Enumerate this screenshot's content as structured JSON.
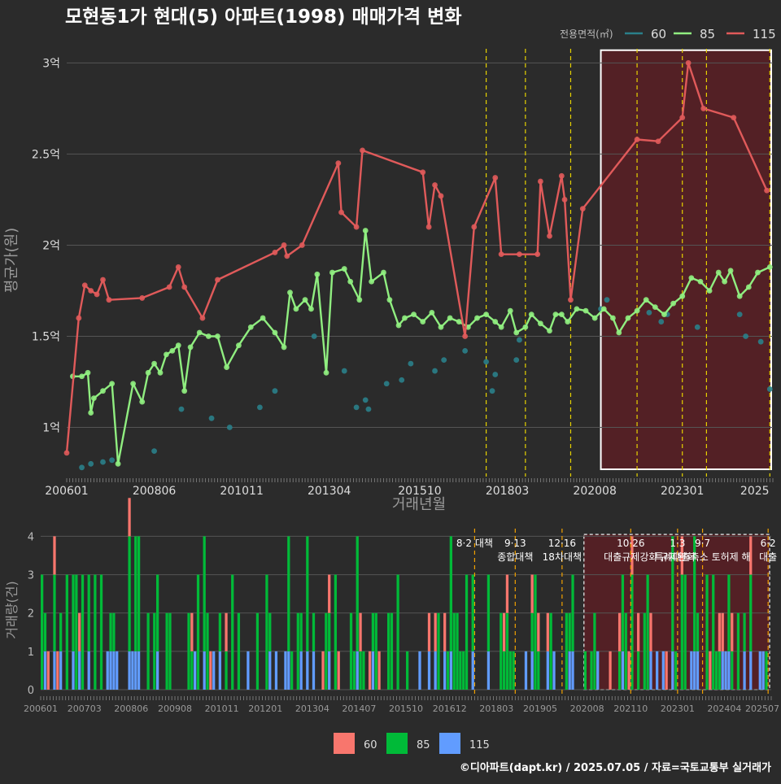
{
  "title": "모현동1가 현대(5) 아파트(1998) 매매가격 변화",
  "credit": "©디아파트(dapt.kr) / 2025.07.05 / 자료=국토교통부 실거래가",
  "colors": {
    "background": "#2b2b2b",
    "grid": "#555555",
    "s60": "#2a7f8a",
    "s85": "#90ee80",
    "s115": "#e05a5a",
    "bar60": "#f8766d",
    "bar85": "#00ba38",
    "bar115": "#619cff",
    "policy_top": "#e6d200",
    "policy_bottom": "#f0a000",
    "highlight_fill": "#5a1f24",
    "highlight_border": "#ffffff"
  },
  "chart_data": [
    {
      "type": "line",
      "name": "price",
      "xlabel": "거래년월",
      "ylabel": "평균가(원)",
      "legend_title": "전용면적(㎡)",
      "legend_placement": "top-right",
      "x_ticks": [
        "200601",
        "200806",
        "201011",
        "201304",
        "201510",
        "201803",
        "202008",
        "202301",
        "2025"
      ],
      "y_ticks": [
        {
          "value": 1.0,
          "label": "1억"
        },
        {
          "value": 1.5,
          "label": "1.5억"
        },
        {
          "value": 2.0,
          "label": "2억"
        },
        {
          "value": 2.5,
          "label": "2.5억"
        },
        {
          "value": 3.0,
          "label": "3억"
        }
      ],
      "ylim": [
        0.73,
        3.1
      ],
      "xlim": [
        "2006-01",
        "2025-07"
      ],
      "grid": true,
      "highlight_period": [
        "2020-10",
        "2025-07"
      ],
      "policy_dates": [
        "2017-08",
        "2018-09",
        "2019-12",
        "2021-10",
        "2023-01",
        "2023-09",
        "2025-06"
      ],
      "series": [
        {
          "name": "60",
          "points": [
            [
              "2006-06",
              0.78
            ],
            [
              "2006-09",
              0.8
            ],
            [
              "2007-01",
              0.81
            ],
            [
              "2007-04",
              0.82
            ],
            [
              "2008-06",
              0.87
            ],
            [
              "2009-03",
              1.1
            ],
            [
              "2010-01",
              1.05
            ],
            [
              "2010-07",
              1.0
            ],
            [
              "2011-05",
              1.11
            ],
            [
              "2011-10",
              1.2
            ],
            [
              "2012-11",
              1.5
            ],
            [
              "2013-09",
              1.31
            ],
            [
              "2014-01",
              1.11
            ],
            [
              "2014-04",
              1.15
            ],
            [
              "2014-05",
              1.1
            ],
            [
              "2014-11",
              1.24
            ],
            [
              "2015-04",
              1.26
            ],
            [
              "2015-07",
              1.35
            ],
            [
              "2016-03",
              1.31
            ],
            [
              "2016-06",
              1.37
            ],
            [
              "2017-01",
              1.42
            ],
            [
              "2017-08",
              1.36
            ],
            [
              "2017-10",
              1.2
            ],
            [
              "2017-11",
              1.29
            ],
            [
              "2018-06",
              1.37
            ],
            [
              "2018-07",
              1.48
            ],
            [
              "2020-10",
              1.65
            ],
            [
              "2020-12",
              1.7
            ],
            [
              "2022-02",
              1.63
            ],
            [
              "2022-06",
              1.58
            ],
            [
              "2022-08",
              1.62
            ],
            [
              "2023-06",
              1.55
            ],
            [
              "2024-08",
              1.62
            ],
            [
              "2024-10",
              1.5
            ],
            [
              "2025-03",
              1.47
            ],
            [
              "2025-06",
              1.21
            ]
          ]
        },
        {
          "name": "85",
          "points": [
            [
              "2006-03",
              1.28
            ],
            [
              "2006-06",
              1.28
            ],
            [
              "2006-08",
              1.3
            ],
            [
              "2006-09",
              1.08
            ],
            [
              "2006-10",
              1.16
            ],
            [
              "2007-01",
              1.2
            ],
            [
              "2007-04",
              1.24
            ],
            [
              "2007-06",
              0.8
            ],
            [
              "2007-11",
              1.24
            ],
            [
              "2008-02",
              1.14
            ],
            [
              "2008-04",
              1.3
            ],
            [
              "2008-06",
              1.35
            ],
            [
              "2008-08",
              1.3
            ],
            [
              "2008-10",
              1.4
            ],
            [
              "2008-12",
              1.42
            ],
            [
              "2009-02",
              1.45
            ],
            [
              "2009-04",
              1.2
            ],
            [
              "2009-06",
              1.44
            ],
            [
              "2009-09",
              1.52
            ],
            [
              "2009-12",
              1.5
            ],
            [
              "2010-03",
              1.5
            ],
            [
              "2010-06",
              1.33
            ],
            [
              "2010-10",
              1.45
            ],
            [
              "2011-02",
              1.55
            ],
            [
              "2011-06",
              1.6
            ],
            [
              "2011-10",
              1.52
            ],
            [
              "2012-01",
              1.44
            ],
            [
              "2012-03",
              1.74
            ],
            [
              "2012-05",
              1.65
            ],
            [
              "2012-08",
              1.7
            ],
            [
              "2012-10",
              1.65
            ],
            [
              "2012-12",
              1.84
            ],
            [
              "2013-03",
              1.3
            ],
            [
              "2013-05",
              1.85
            ],
            [
              "2013-09",
              1.87
            ],
            [
              "2013-11",
              1.8
            ],
            [
              "2014-02",
              1.7
            ],
            [
              "2014-04",
              2.08
            ],
            [
              "2014-06",
              1.8
            ],
            [
              "2014-10",
              1.85
            ],
            [
              "2014-12",
              1.7
            ],
            [
              "2015-03",
              1.56
            ],
            [
              "2015-05",
              1.6
            ],
            [
              "2015-08",
              1.62
            ],
            [
              "2015-11",
              1.58
            ],
            [
              "2016-02",
              1.63
            ],
            [
              "2016-05",
              1.55
            ],
            [
              "2016-08",
              1.6
            ],
            [
              "2016-11",
              1.58
            ],
            [
              "2017-02",
              1.55
            ],
            [
              "2017-05",
              1.6
            ],
            [
              "2017-08",
              1.62
            ],
            [
              "2017-11",
              1.58
            ],
            [
              "2018-01",
              1.55
            ],
            [
              "2018-04",
              1.64
            ],
            [
              "2018-06",
              1.52
            ],
            [
              "2018-09",
              1.55
            ],
            [
              "2018-11",
              1.62
            ],
            [
              "2019-02",
              1.57
            ],
            [
              "2019-05",
              1.53
            ],
            [
              "2019-07",
              1.62
            ],
            [
              "2019-09",
              1.62
            ],
            [
              "2019-11",
              1.58
            ],
            [
              "2020-02",
              1.65
            ],
            [
              "2020-05",
              1.64
            ],
            [
              "2020-08",
              1.6
            ],
            [
              "2020-11",
              1.65
            ],
            [
              "2021-02",
              1.6
            ],
            [
              "2021-04",
              1.52
            ],
            [
              "2021-07",
              1.6
            ],
            [
              "2021-10",
              1.64
            ],
            [
              "2022-01",
              1.7
            ],
            [
              "2022-04",
              1.66
            ],
            [
              "2022-07",
              1.62
            ],
            [
              "2022-10",
              1.68
            ],
            [
              "2023-01",
              1.72
            ],
            [
              "2023-04",
              1.82
            ],
            [
              "2023-07",
              1.8
            ],
            [
              "2023-10",
              1.75
            ],
            [
              "2024-01",
              1.85
            ],
            [
              "2024-03",
              1.8
            ],
            [
              "2024-05",
              1.86
            ],
            [
              "2024-08",
              1.72
            ],
            [
              "2024-11",
              1.77
            ],
            [
              "2025-02",
              1.85
            ],
            [
              "2025-06",
              1.88
            ]
          ]
        },
        {
          "name": "115",
          "points": [
            [
              "2006-01",
              0.86
            ],
            [
              "2006-05",
              1.6
            ],
            [
              "2006-07",
              1.78
            ],
            [
              "2006-09",
              1.75
            ],
            [
              "2006-11",
              1.73
            ],
            [
              "2007-01",
              1.81
            ],
            [
              "2007-03",
              1.7
            ],
            [
              "2008-02",
              1.71
            ],
            [
              "2008-11",
              1.77
            ],
            [
              "2009-02",
              1.88
            ],
            [
              "2009-04",
              1.77
            ],
            [
              "2009-10",
              1.6
            ],
            [
              "2010-03",
              1.81
            ],
            [
              "2011-10",
              1.96
            ],
            [
              "2012-01",
              2.0
            ],
            [
              "2012-02",
              1.94
            ],
            [
              "2012-07",
              2.0
            ],
            [
              "2013-07",
              2.45
            ],
            [
              "2013-08",
              2.18
            ],
            [
              "2014-01",
              2.1
            ],
            [
              "2014-03",
              2.52
            ],
            [
              "2015-11",
              2.4
            ],
            [
              "2016-01",
              2.1
            ],
            [
              "2016-03",
              2.33
            ],
            [
              "2016-05",
              2.27
            ],
            [
              "2017-01",
              1.5
            ],
            [
              "2017-04",
              2.1
            ],
            [
              "2017-11",
              2.37
            ],
            [
              "2018-01",
              1.95
            ],
            [
              "2018-07",
              1.95
            ],
            [
              "2019-01",
              1.95
            ],
            [
              "2019-02",
              2.35
            ],
            [
              "2019-05",
              2.05
            ],
            [
              "2019-09",
              2.38
            ],
            [
              "2019-10",
              2.25
            ],
            [
              "2019-12",
              1.7
            ],
            [
              "2020-04",
              2.2
            ],
            [
              "2021-10",
              2.58
            ],
            [
              "2022-05",
              2.57
            ],
            [
              "2023-01",
              2.7
            ],
            [
              "2023-03",
              3.0
            ],
            [
              "2023-08",
              2.75
            ],
            [
              "2024-06",
              2.7
            ],
            [
              "2025-05",
              2.3
            ]
          ]
        }
      ]
    },
    {
      "type": "bar",
      "name": "volume",
      "xlabel": "",
      "ylabel": "거래량(건)",
      "x_ticks": [
        "200601",
        "200703",
        "200806",
        "200908",
        "201011",
        "201201",
        "201304",
        "201407",
        "201510",
        "201612",
        "201803",
        "201905",
        "202008",
        "202110",
        "202301",
        "202404",
        "202507"
      ],
      "y_ticks": [
        0,
        1,
        2,
        3,
        4
      ],
      "ylim": [
        0,
        4.2
      ],
      "highlight_period": [
        "2020-07",
        "2025-07"
      ],
      "policy_labels": [
        {
          "date": "2017-08",
          "lines": [
            "8·2 대책"
          ]
        },
        {
          "date": "2018-09",
          "lines": [
            "9·13",
            "종합대책"
          ]
        },
        {
          "date": "2019-12",
          "lines": [
            "12·16",
            "18차대책"
          ]
        },
        {
          "date": "2021-10",
          "lines": [
            "10·26",
            "대출규제강화"
          ]
        },
        {
          "date": "2023-01",
          "lines": [
            "1·3",
            "규제완화"
          ]
        },
        {
          "date": "2023-09",
          "lines": [
            "9·7",
            "특례대출축소 토허제 해"
          ]
        },
        {
          "date": "2025-06",
          "lines": [
            "6·2",
            "대출"
          ]
        }
      ],
      "legend": [
        {
          "name": "60",
          "color": "#f8766d"
        },
        {
          "name": "85",
          "color": "#00ba38"
        },
        {
          "name": "115",
          "color": "#619cff"
        }
      ]
    }
  ]
}
